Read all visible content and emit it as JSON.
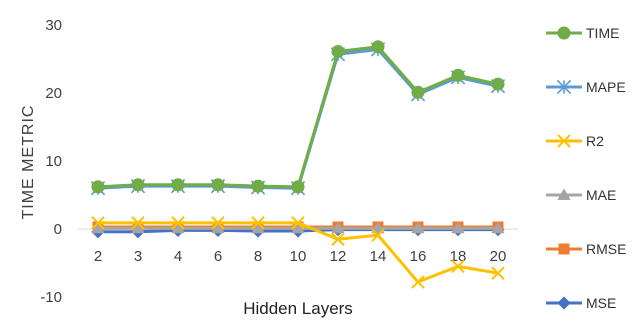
{
  "chart_data": {
    "type": "line",
    "xlabel": "Hidden Layers",
    "ylabel": "TIME METRIC",
    "categories": [
      "2",
      "3",
      "4",
      "6",
      "8",
      "10",
      "12",
      "14",
      "16",
      "18",
      "20"
    ],
    "ylim": [
      -10,
      30
    ],
    "yticks": [
      -10,
      0,
      10,
      20,
      30
    ],
    "grid": false,
    "legend_position": "right",
    "series": [
      {
        "name": "TIME",
        "color": "#70ad47",
        "marker": "circle",
        "values": [
          6.2,
          6.5,
          6.5,
          6.5,
          6.3,
          6.2,
          26.1,
          26.8,
          20.1,
          22.6,
          21.3
        ]
      },
      {
        "name": "MAPE",
        "color": "#5b9bd5",
        "marker": "star",
        "values": [
          6.0,
          6.3,
          6.3,
          6.3,
          6.1,
          6.0,
          25.7,
          26.4,
          19.8,
          22.3,
          21.0
        ]
      },
      {
        "name": "R2",
        "color": "#ffc000",
        "marker": "x",
        "values": [
          0.9,
          0.9,
          0.9,
          0.9,
          0.9,
          0.9,
          -1.5,
          -0.9,
          -7.8,
          -5.5,
          -6.5
        ]
      },
      {
        "name": "MAE",
        "color": "#a5a5a5",
        "marker": "triangle",
        "values": [
          0.1,
          0.1,
          0.1,
          0.1,
          0.1,
          0.1,
          0.1,
          0.1,
          0.1,
          0.1,
          0.1
        ]
      },
      {
        "name": "RMSE",
        "color": "#ed7d31",
        "marker": "square",
        "values": [
          0.3,
          0.3,
          0.3,
          0.3,
          0.3,
          0.3,
          0.3,
          0.3,
          0.3,
          0.3,
          0.3
        ]
      },
      {
        "name": "MSE",
        "color": "#4472c4",
        "marker": "diamond",
        "values": [
          -0.4,
          -0.4,
          -0.2,
          -0.2,
          -0.3,
          -0.3,
          -0.1,
          -0.1,
          -0.1,
          -0.1,
          -0.1
        ]
      }
    ]
  }
}
